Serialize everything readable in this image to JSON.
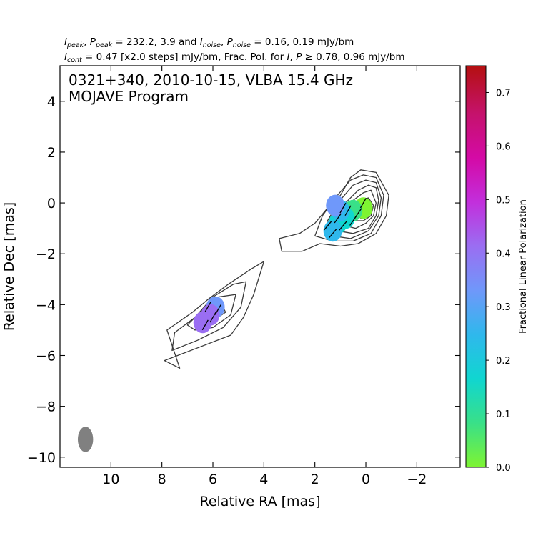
{
  "header": {
    "line1": {
      "i_peak_sym": "I",
      "i_peak_sub": "peak",
      "p_peak_sym": "P",
      "p_peak_sub": "peak",
      "peak_values": " = 232.2, 3.9 and ",
      "i_noise_sym": "I",
      "i_noise_sub": "noise",
      "p_noise_sym": "P",
      "p_noise_sub": "noise",
      "noise_values": " = 0.16, 0.19 mJy/bm"
    },
    "line2": {
      "i_cont_sym": "I",
      "i_cont_sub": "cont",
      "cont_values": " = 0.47 [x2.0 steps] mJy/bm, Frac. Pol. for ",
      "i_sym": "I",
      "p_sym": "P",
      "threshold_values": " ≥  0.78, 0.96 mJy/bm"
    }
  },
  "plot_title_line1": "0321+340, 2010-10-15, VLBA 15.4 GHz",
  "plot_title_line2": "MOJAVE Program",
  "chart_data": {
    "type": "contour",
    "xlabel": "Relative RA [mas]",
    "ylabel": "Relative Dec [mas]",
    "xlim": [
      12.0,
      -3.7
    ],
    "ylim": [
      -10.4,
      5.4
    ],
    "x_ticks": [
      10,
      8,
      6,
      4,
      2,
      0,
      -2
    ],
    "x_tick_labels": [
      "10",
      "8",
      "6",
      "4",
      "2",
      "0",
      "−2"
    ],
    "y_ticks": [
      4,
      2,
      0,
      -2,
      -4,
      -6,
      -8,
      -10
    ],
    "y_tick_labels": [
      "4",
      "2",
      "0",
      "−2",
      "−4",
      "−6",
      "−8",
      "−10"
    ],
    "source": "0321+340",
    "date": "2010-10-15",
    "frequency": "15.4 GHz",
    "I_peak_mJy_per_beam": 232.2,
    "P_peak_mJy_per_beam": 3.9,
    "I_noise_mJy_per_beam": 0.16,
    "P_noise_mJy_per_beam": 0.19,
    "I_cont_lowest_mJy_per_beam": 0.47,
    "contour_step_factor": 2.0,
    "frac_pol_threshold_I": 0.78,
    "frac_pol_threshold_P": 0.96,
    "beam": {
      "x": 11.0,
      "y": -9.3,
      "major_mas": 1.0,
      "minor_mas": 0.6,
      "pa_deg": 0
    },
    "core": {
      "x": -0.2,
      "y": -0.2
    },
    "contours": [
      [
        [
          -0.9,
          0.3
        ],
        [
          -0.8,
          -0.5
        ],
        [
          -0.4,
          -1.2
        ],
        [
          0.3,
          -1.6
        ],
        [
          1.0,
          -1.7
        ],
        [
          1.8,
          -1.6
        ],
        [
          2.5,
          -1.9
        ],
        [
          3.3,
          -1.9
        ],
        [
          3.4,
          -1.4
        ],
        [
          2.6,
          -1.2
        ],
        [
          2.0,
          -0.8
        ],
        [
          1.5,
          -0.2
        ],
        [
          1.0,
          0.3
        ],
        [
          0.6,
          1.0
        ],
        [
          0.2,
          1.3
        ],
        [
          -0.4,
          1.2
        ]
      ],
      [
        [
          -0.7,
          0.3
        ],
        [
          -0.6,
          -0.5
        ],
        [
          -0.2,
          -1.2
        ],
        [
          0.5,
          -1.5
        ],
        [
          1.3,
          -1.5
        ],
        [
          2.0,
          -1.3
        ],
        [
          1.7,
          -0.5
        ],
        [
          1.2,
          0.2
        ],
        [
          0.6,
          0.9
        ],
        [
          0.1,
          1.1
        ],
        [
          -0.4,
          1.0
        ]
      ],
      [
        [
          -0.6,
          0.2
        ],
        [
          -0.5,
          -0.5
        ],
        [
          -0.1,
          -1.1
        ],
        [
          0.6,
          -1.4
        ],
        [
          1.3,
          -1.3
        ],
        [
          1.5,
          -0.7
        ],
        [
          1.1,
          0.0
        ],
        [
          0.5,
          0.7
        ],
        [
          0.0,
          0.9
        ],
        [
          -0.4,
          0.8
        ]
      ],
      [
        [
          -0.5,
          0.1
        ],
        [
          -0.4,
          -0.5
        ],
        [
          -0.1,
          -1.0
        ],
        [
          0.5,
          -1.2
        ],
        [
          1.1,
          -1.1
        ],
        [
          1.2,
          -0.6
        ],
        [
          0.8,
          0.0
        ],
        [
          0.3,
          0.5
        ],
        [
          -0.1,
          0.7
        ],
        [
          -0.4,
          0.6
        ]
      ],
      [
        [
          -0.4,
          0.0
        ],
        [
          -0.3,
          -0.5
        ],
        [
          0.0,
          -0.8
        ],
        [
          0.4,
          -1.0
        ],
        [
          0.8,
          -0.9
        ],
        [
          0.8,
          -0.4
        ],
        [
          0.5,
          0.1
        ],
        [
          0.1,
          0.4
        ],
        [
          -0.2,
          0.5
        ]
      ],
      [
        [
          -0.3,
          -0.1
        ],
        [
          -0.2,
          -0.5
        ],
        [
          0.1,
          -0.7
        ],
        [
          0.5,
          -0.7
        ],
        [
          0.5,
          -0.3
        ],
        [
          0.2,
          0.1
        ],
        [
          -0.1,
          0.2
        ]
      ],
      [
        [
          -0.2,
          -0.2
        ],
        [
          -0.1,
          -0.5
        ],
        [
          0.2,
          -0.6
        ],
        [
          0.3,
          -0.3
        ],
        [
          0.1,
          0.0
        ],
        [
          -0.1,
          0.0
        ]
      ],
      [
        [
          -0.1,
          -0.2
        ],
        [
          0.0,
          -0.4
        ],
        [
          0.15,
          -0.4
        ],
        [
          0.15,
          -0.2
        ],
        [
          0.0,
          -0.1
        ]
      ],
      [
        [
          7.9,
          -6.2
        ],
        [
          7.3,
          -6.5
        ],
        [
          7.8,
          -5.0
        ],
        [
          6.8,
          -4.3
        ],
        [
          6.2,
          -3.8
        ],
        [
          5.4,
          -3.2
        ],
        [
          4.5,
          -2.6
        ],
        [
          4.0,
          -2.3
        ],
        [
          4.4,
          -3.6
        ],
        [
          4.8,
          -4.5
        ],
        [
          5.3,
          -5.2
        ],
        [
          6.6,
          -5.7
        ]
      ],
      [
        [
          7.6,
          -5.8
        ],
        [
          7.5,
          -5.1
        ],
        [
          6.7,
          -4.5
        ],
        [
          6.0,
          -3.7
        ],
        [
          5.2,
          -3.2
        ],
        [
          4.7,
          -3.1
        ],
        [
          4.9,
          -4.1
        ],
        [
          5.6,
          -4.9
        ],
        [
          6.6,
          -5.4
        ]
      ],
      [
        [
          7.0,
          -4.8
        ],
        [
          6.4,
          -4.2
        ],
        [
          5.8,
          -3.7
        ],
        [
          5.1,
          -3.6
        ],
        [
          5.3,
          -4.4
        ],
        [
          6.0,
          -4.9
        ],
        [
          6.7,
          -5.0
        ]
      ],
      [
        [
          6.7,
          -4.7
        ],
        [
          6.2,
          -4.2
        ],
        [
          5.7,
          -3.9
        ],
        [
          5.5,
          -4.3
        ],
        [
          6.1,
          -4.7
        ]
      ],
      [
        [
          6.1,
          -4.2
        ],
        [
          5.8,
          -3.9
        ],
        [
          5.6,
          -4.1
        ],
        [
          5.9,
          -4.5
        ]
      ]
    ],
    "frac_pol_patches": [
      {
        "x": 0.1,
        "y": -0.2,
        "frac_pol": 0.02
      },
      {
        "x": 0.5,
        "y": -0.3,
        "frac_pol": 0.08
      },
      {
        "x": 0.8,
        "y": -0.6,
        "frac_pol": 0.14
      },
      {
        "x": 1.1,
        "y": -0.8,
        "frac_pol": 0.2
      },
      {
        "x": 1.3,
        "y": -1.1,
        "frac_pol": 0.22
      },
      {
        "x": 1.0,
        "y": -0.3,
        "frac_pol": 0.28
      },
      {
        "x": 1.2,
        "y": -0.1,
        "frac_pol": 0.35
      },
      {
        "x": 5.9,
        "y": -4.1,
        "frac_pol": 0.34
      },
      {
        "x": 6.1,
        "y": -4.4,
        "frac_pol": 0.4
      },
      {
        "x": 6.4,
        "y": -4.7,
        "frac_pol": 0.45
      }
    ],
    "evpa_vectors": [
      {
        "x": 0.1,
        "y": 0.0,
        "angle_deg": 60
      },
      {
        "x": 0.3,
        "y": -0.4,
        "angle_deg": 55
      },
      {
        "x": 0.5,
        "y": -0.7,
        "angle_deg": 55
      },
      {
        "x": 0.7,
        "y": -0.3,
        "angle_deg": 60
      },
      {
        "x": 0.9,
        "y": -0.9,
        "angle_deg": 50
      },
      {
        "x": 1.1,
        "y": -0.6,
        "angle_deg": 55
      },
      {
        "x": 1.3,
        "y": -1.2,
        "angle_deg": 50
      },
      {
        "x": 1.5,
        "y": -0.9,
        "angle_deg": 50
      },
      {
        "x": 0.9,
        "y": -0.2,
        "angle_deg": 60
      },
      {
        "x": 5.8,
        "y": -4.2,
        "angle_deg": 60
      },
      {
        "x": 6.0,
        "y": -4.5,
        "angle_deg": 60
      },
      {
        "x": 6.3,
        "y": -4.8,
        "angle_deg": 60
      },
      {
        "x": 6.2,
        "y": -4.1,
        "angle_deg": 60
      }
    ],
    "colorbar": {
      "label": "Fractional Linear Polarization",
      "vmin": 0.0,
      "vmax": 0.75,
      "ticks": [
        0.0,
        0.1,
        0.2,
        0.3,
        0.4,
        0.5,
        0.6,
        0.7
      ],
      "tick_labels": [
        "0.0",
        "0.1",
        "0.2",
        "0.3",
        "0.4",
        "0.5",
        "0.6",
        "0.7"
      ],
      "colors": [
        "#7ef432",
        "#39e088",
        "#10d6d0",
        "#2fb8ec",
        "#6f98fa",
        "#9a6ef2",
        "#c22fdc",
        "#d40aa6",
        "#c5126c",
        "#b41010"
      ]
    }
  }
}
